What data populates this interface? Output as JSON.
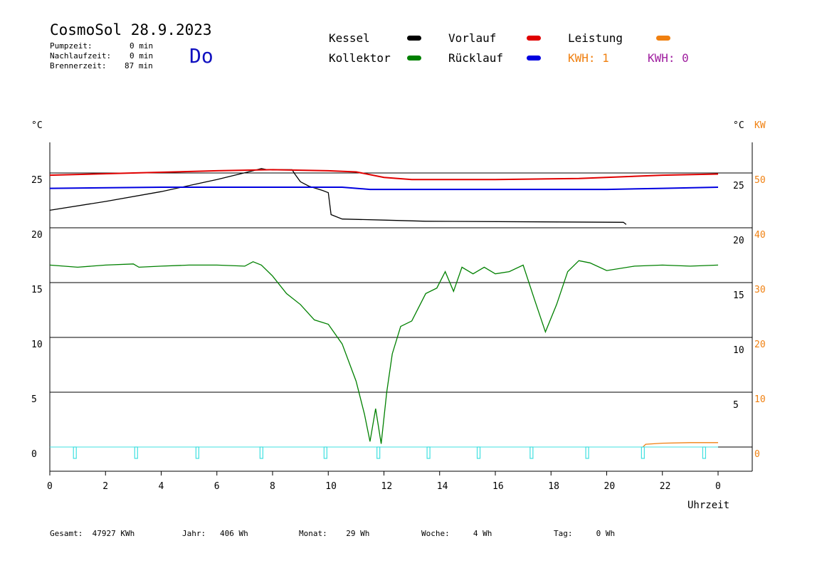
{
  "header": {
    "title": "CosmoSol 28.9.2023",
    "dayname": "Do",
    "stats": [
      {
        "label": "Pumpzeit:",
        "value": "0 min"
      },
      {
        "label": "Nachlaufzeit:",
        "value": "0 min"
      },
      {
        "label": "Brennerzeit:",
        "value": "87 min"
      }
    ]
  },
  "legend": {
    "kessel": "Kessel",
    "kollektor": "Kollektor",
    "vorlauf": "Vorlauf",
    "ruecklauf": "Rücklauf",
    "leistung": "Leistung",
    "kwh1": "KWH: 1",
    "kwh2": "KWH: 0"
  },
  "colors": {
    "kessel": "#000000",
    "kollektor": "#008000",
    "vorlauf": "#e00000",
    "ruecklauf": "#0000e0",
    "leistung": "#f08010",
    "kwh2": "#a020a0",
    "pump": "#40e0e0",
    "grid": "#000000"
  },
  "footer": {
    "gesamt": "Gesamt:  47927 KWh",
    "jahr": "Jahr:   406 Wh",
    "monat": "Monat:    29 Wh",
    "woche": "Woche:     4 Wh",
    "tag": "Tag:     0 Wh"
  },
  "chart_data": {
    "type": "line",
    "xlabel": "Uhrzeit",
    "ylabel_left": "°C",
    "ylabel_right_temp": "°C",
    "ylabel_right_power": "KW",
    "xlim": [
      0,
      24
    ],
    "ylim": [
      -2,
      28
    ],
    "x_ticks": [
      "0",
      "2",
      "4",
      "6",
      "8",
      "10",
      "12",
      "14",
      "16",
      "18",
      "20",
      "22",
      "0"
    ],
    "y_ticks_left": [
      "0",
      "5",
      "10",
      "15",
      "20",
      "25"
    ],
    "y_ticks_right_temp": [
      "5",
      "10",
      "15",
      "20",
      "25"
    ],
    "y_ticks_right_power": [
      "0",
      "10",
      "20",
      "30",
      "40",
      "50"
    ],
    "grid": "horizontal",
    "series": [
      {
        "name": "Kessel",
        "color": "#000000",
        "points": [
          [
            0,
            21.6
          ],
          [
            2,
            22.4
          ],
          [
            4,
            23.3
          ],
          [
            6,
            24.4
          ],
          [
            7.3,
            25.2
          ],
          [
            7.6,
            25.4
          ],
          [
            7.8,
            25.3
          ],
          [
            8.7,
            25.3
          ],
          [
            8.8,
            24.9
          ],
          [
            9.0,
            24.2
          ],
          [
            9.3,
            23.8
          ],
          [
            9.8,
            23.4
          ],
          [
            10.0,
            23.2
          ],
          [
            10.1,
            21.2
          ],
          [
            10.5,
            20.8
          ],
          [
            12,
            20.7
          ],
          [
            13.5,
            20.6
          ],
          [
            20.6,
            20.5
          ],
          [
            20.7,
            20.3
          ]
        ]
      },
      {
        "name": "Vorlauf",
        "color": "#e00000",
        "points": [
          [
            0,
            24.8
          ],
          [
            3,
            25.0
          ],
          [
            6,
            25.2
          ],
          [
            8,
            25.3
          ],
          [
            10,
            25.2
          ],
          [
            11,
            25.1
          ],
          [
            12,
            24.6
          ],
          [
            13,
            24.4
          ],
          [
            16,
            24.4
          ],
          [
            19,
            24.5
          ],
          [
            22,
            24.8
          ],
          [
            24,
            24.9
          ]
        ]
      },
      {
        "name": "Rücklauf",
        "color": "#0000e0",
        "points": [
          [
            0,
            23.6
          ],
          [
            4,
            23.7
          ],
          [
            8,
            23.7
          ],
          [
            10.5,
            23.7
          ],
          [
            11.5,
            23.5
          ],
          [
            15,
            23.5
          ],
          [
            20,
            23.5
          ],
          [
            22,
            23.6
          ],
          [
            24,
            23.7
          ]
        ]
      },
      {
        "name": "Kollektor",
        "color": "#008000",
        "points": [
          [
            0,
            16.6
          ],
          [
            1,
            16.4
          ],
          [
            2,
            16.6
          ],
          [
            3,
            16.7
          ],
          [
            3.2,
            16.4
          ],
          [
            4,
            16.5
          ],
          [
            5,
            16.6
          ],
          [
            6,
            16.6
          ],
          [
            7,
            16.5
          ],
          [
            7.3,
            16.9
          ],
          [
            7.6,
            16.6
          ],
          [
            8,
            15.6
          ],
          [
            8.5,
            14.0
          ],
          [
            9,
            13.0
          ],
          [
            9.5,
            11.6
          ],
          [
            10,
            11.2
          ],
          [
            10.5,
            9.4
          ],
          [
            11,
            6.0
          ],
          [
            11.3,
            3.0
          ],
          [
            11.5,
            0.5
          ],
          [
            11.7,
            3.5
          ],
          [
            11.9,
            0.3
          ],
          [
            12.1,
            5.0
          ],
          [
            12.3,
            8.5
          ],
          [
            12.6,
            11.0
          ],
          [
            13,
            11.5
          ],
          [
            13.5,
            14.0
          ],
          [
            13.9,
            14.5
          ],
          [
            14.2,
            16.0
          ],
          [
            14.5,
            14.2
          ],
          [
            14.8,
            16.4
          ],
          [
            15.2,
            15.8
          ],
          [
            15.6,
            16.4
          ],
          [
            16,
            15.8
          ],
          [
            16.5,
            16.0
          ],
          [
            17,
            16.6
          ],
          [
            17.4,
            13.5
          ],
          [
            17.8,
            10.5
          ],
          [
            18.2,
            13.0
          ],
          [
            18.6,
            16.0
          ],
          [
            19,
            17.0
          ],
          [
            19.4,
            16.8
          ],
          [
            20,
            16.1
          ],
          [
            21,
            16.5
          ],
          [
            22,
            16.6
          ],
          [
            23,
            16.5
          ],
          [
            24,
            16.6
          ]
        ]
      },
      {
        "name": "Leistung",
        "color": "#f08010",
        "points": [
          [
            21.3,
            0.0
          ],
          [
            21.4,
            0.25
          ],
          [
            22,
            0.35
          ],
          [
            23,
            0.4
          ],
          [
            24,
            0.4
          ]
        ]
      }
    ],
    "pump_markers_x": [
      0.9,
      3.1,
      5.3,
      7.6,
      9.9,
      11.8,
      13.6,
      15.4,
      17.3,
      19.3,
      21.3,
      23.5
    ]
  }
}
